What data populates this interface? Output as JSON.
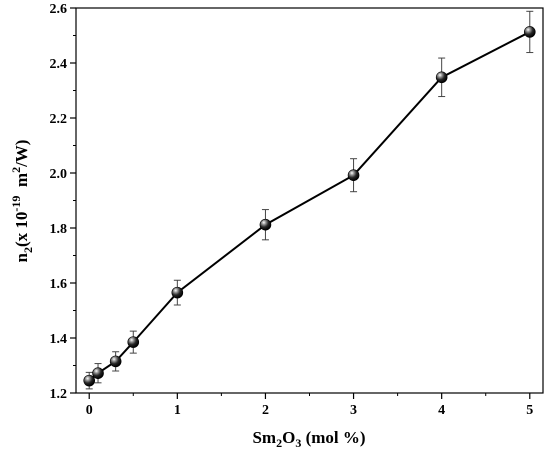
{
  "chart_data": {
    "type": "line",
    "xlabel": {
      "base": "Sm",
      "sub1": "2",
      "mid": "O",
      "sub2": "3",
      "rest": " (mol %)"
    },
    "ylabel": {
      "base": "n",
      "sub": "2",
      "mid": "(x 10",
      "sup1": "-19",
      "mid2": "  m",
      "sup2": "2",
      "rest": "/W)"
    },
    "xlim": [
      -0.15,
      5.15
    ],
    "ylim": [
      1.2,
      2.6
    ],
    "xticks": [
      0,
      1,
      2,
      3,
      4,
      5
    ],
    "yticks": [
      1.2,
      1.4,
      1.6,
      1.8,
      2.0,
      2.2,
      2.4,
      2.6
    ],
    "ytick_labels": [
      "1.2",
      "1.4",
      "1.6",
      "1.8",
      "2.0",
      "2.2",
      "2.4",
      "2.6"
    ],
    "grid": false,
    "series": [
      {
        "x": [
          0,
          0.1,
          0.3,
          0.5,
          1,
          2,
          3,
          4,
          5
        ],
        "y": [
          1.245,
          1.272,
          1.315,
          1.385,
          1.565,
          1.812,
          1.992,
          2.348,
          2.513
        ],
        "err": [
          0.03,
          0.035,
          0.035,
          0.04,
          0.045,
          0.055,
          0.06,
          0.07,
          0.075
        ]
      }
    ],
    "marker": "sphere",
    "line_color": "#000000"
  }
}
